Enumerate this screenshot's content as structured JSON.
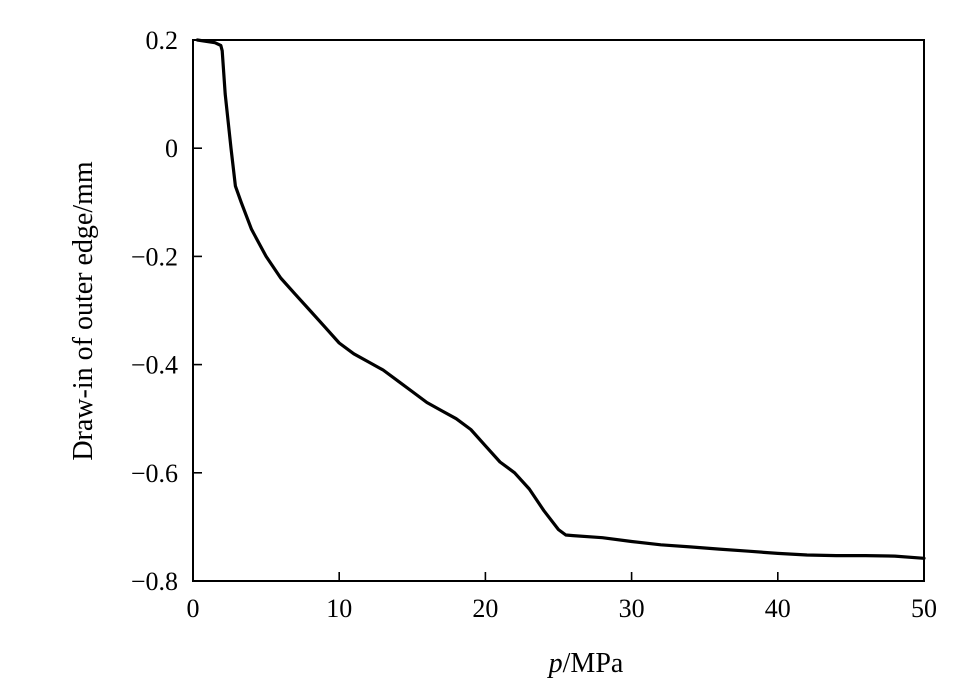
{
  "chart_data": {
    "type": "line",
    "title": "",
    "xlabel_italic": "p",
    "xlabel_rest": "/MPa",
    "ylabel": "Draw-in of outer edge/mm",
    "xlim": [
      0,
      50
    ],
    "ylim": [
      -0.8,
      0.2
    ],
    "xticks": [
      0,
      10,
      20,
      30,
      40,
      50
    ],
    "xtick_labels": [
      "0",
      "10",
      "20",
      "30",
      "40",
      "50"
    ],
    "yticks": [
      0.2,
      0,
      -0.2,
      -0.4,
      -0.6,
      -0.8
    ],
    "ytick_labels": [
      "0.2",
      "0",
      "−0.2",
      "−0.4",
      "−0.6",
      "−0.8"
    ],
    "grid": false,
    "series": [
      {
        "x": [
          0.3,
          1.5,
          1.9,
          2.0,
          2.2,
          2.6,
          2.9,
          3.3,
          4.0,
          5.0,
          6.0,
          7.0,
          8.0,
          9.0,
          10.0,
          11.0,
          12.0,
          13.0,
          14.0,
          15.0,
          16.0,
          17.0,
          18.0,
          19.0,
          20.0,
          21.0,
          22.0,
          23.0,
          24.0,
          25.0,
          25.5,
          26.0,
          28.0,
          30.0,
          32.0,
          34.0,
          36.0,
          38.0,
          40.0,
          42.0,
          44.0,
          46.0,
          48.0,
          50.0
        ],
        "y": [
          0.2,
          0.195,
          0.19,
          0.18,
          0.1,
          0.0,
          -0.07,
          -0.1,
          -0.15,
          -0.2,
          -0.24,
          -0.27,
          -0.3,
          -0.33,
          -0.36,
          -0.38,
          -0.395,
          -0.41,
          -0.43,
          -0.45,
          -0.47,
          -0.485,
          -0.5,
          -0.52,
          -0.55,
          -0.58,
          -0.6,
          -0.63,
          -0.67,
          -0.705,
          -0.715,
          -0.716,
          -0.72,
          -0.727,
          -0.733,
          -0.737,
          -0.741,
          -0.745,
          -0.749,
          -0.752,
          -0.753,
          -0.753,
          -0.754,
          -0.758
        ]
      }
    ]
  }
}
